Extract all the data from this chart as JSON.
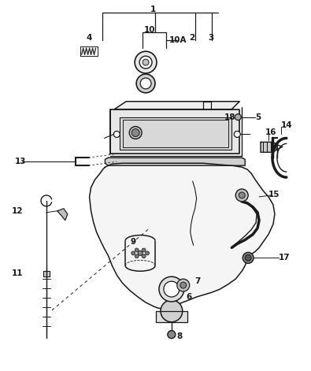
{
  "bg_color": "#ffffff",
  "fig_width": 3.95,
  "fig_height": 4.71,
  "dpi": 100,
  "line_color": "#1a1a1a",
  "label_fontsize": 7.5
}
